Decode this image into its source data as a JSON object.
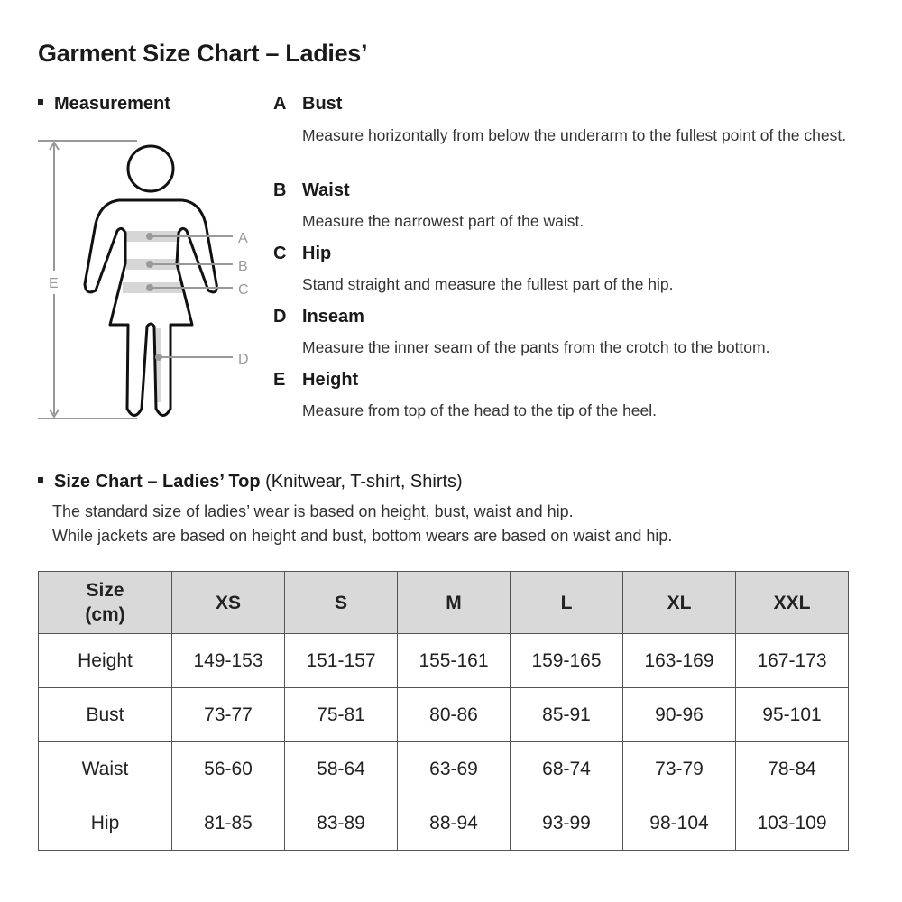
{
  "title": "Garment Size Chart – Ladies’",
  "measurement": {
    "heading": "Measurement",
    "figure_labels": [
      "A",
      "B",
      "C",
      "D",
      "E"
    ],
    "items": [
      {
        "letter": "A",
        "name": "Bust",
        "description": "Measure horizontally from below the underarm to the fullest point of the chest."
      },
      {
        "letter": "B",
        "name": "Waist",
        "description": "Measure the narrowest part of the waist."
      },
      {
        "letter": "C",
        "name": "Hip",
        "description": "Stand straight and measure the fullest part of the hip."
      },
      {
        "letter": "D",
        "name": "Inseam",
        "description": "Measure the inner seam of the pants from the crotch to the bottom."
      },
      {
        "letter": "E",
        "name": "Height",
        "description": "Measure from top of the head to the tip of the heel."
      }
    ]
  },
  "size_chart": {
    "heading": "Size Chart – Ladies’ Top",
    "heading_note": "(Knitwear, T-shirt, Shirts)",
    "intro": [
      "The standard size of ladies’ wear is based on height, bust, waist and hip.",
      "While jackets are based on height and bust, bottom wears are based on waist and hip."
    ],
    "header": {
      "corner_line1": "Size",
      "corner_line2": "(cm)",
      "sizes": [
        "XS",
        "S",
        "M",
        "L",
        "XL",
        "XXL"
      ]
    },
    "rows": [
      {
        "label": "Height",
        "values": [
          "149-153",
          "151-157",
          "155-161",
          "159-165",
          "163-169",
          "167-173"
        ]
      },
      {
        "label": "Bust",
        "values": [
          "73-77",
          "75-81",
          "80-86",
          "85-91",
          "90-96",
          "95-101"
        ]
      },
      {
        "label": "Waist",
        "values": [
          "56-60",
          "58-64",
          "63-69",
          "68-74",
          "73-79",
          "78-84"
        ]
      },
      {
        "label": "Hip",
        "values": [
          "81-85",
          "83-89",
          "88-94",
          "93-99",
          "98-104",
          "103-109"
        ]
      }
    ]
  },
  "colors": {
    "header_bg": "#d9d9d9",
    "figure_guides": "#999999"
  }
}
